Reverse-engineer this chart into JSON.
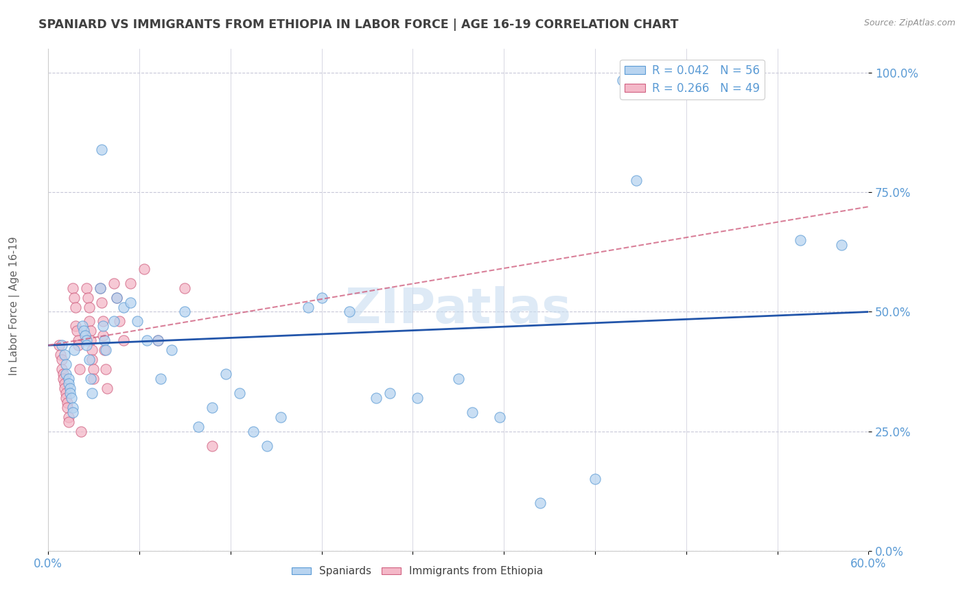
{
  "title": "SPANIARD VS IMMIGRANTS FROM ETHIOPIA IN LABOR FORCE | AGE 16-19 CORRELATION CHART",
  "source": "Source: ZipAtlas.com",
  "ylabel": "In Labor Force | Age 16-19",
  "xlim": [
    0.0,
    0.6
  ],
  "ylim": [
    0.0,
    1.05
  ],
  "yticks": [
    0.0,
    0.25,
    0.5,
    0.75,
    1.0
  ],
  "ytick_labels": [
    "0.0%",
    "25.0%",
    "50.0%",
    "75.0%",
    "100.0%"
  ],
  "blue_color": "#b8d4f0",
  "blue_edge": "#5b9bd5",
  "pink_color": "#f4b8c8",
  "pink_edge": "#d06080",
  "line_blue_color": "#2255aa",
  "line_pink_color": "#d06080",
  "axis_label_color": "#5b9bd5",
  "title_color": "#404040",
  "grid_color": "#c8c8d8",
  "watermark_color": "#c8ddf0",
  "blue_scatter": [
    [
      0.01,
      0.43
    ],
    [
      0.012,
      0.41
    ],
    [
      0.013,
      0.39
    ],
    [
      0.013,
      0.37
    ],
    [
      0.015,
      0.36
    ],
    [
      0.015,
      0.35
    ],
    [
      0.016,
      0.34
    ],
    [
      0.016,
      0.33
    ],
    [
      0.017,
      0.32
    ],
    [
      0.018,
      0.3
    ],
    [
      0.018,
      0.29
    ],
    [
      0.019,
      0.42
    ],
    [
      0.025,
      0.47
    ],
    [
      0.026,
      0.46
    ],
    [
      0.027,
      0.45
    ],
    [
      0.028,
      0.44
    ],
    [
      0.028,
      0.43
    ],
    [
      0.03,
      0.4
    ],
    [
      0.031,
      0.36
    ],
    [
      0.032,
      0.33
    ],
    [
      0.038,
      0.55
    ],
    [
      0.039,
      0.84
    ],
    [
      0.04,
      0.47
    ],
    [
      0.041,
      0.44
    ],
    [
      0.042,
      0.42
    ],
    [
      0.048,
      0.48
    ],
    [
      0.05,
      0.53
    ],
    [
      0.055,
      0.51
    ],
    [
      0.06,
      0.52
    ],
    [
      0.065,
      0.48
    ],
    [
      0.072,
      0.44
    ],
    [
      0.08,
      0.44
    ],
    [
      0.082,
      0.36
    ],
    [
      0.09,
      0.42
    ],
    [
      0.1,
      0.5
    ],
    [
      0.11,
      0.26
    ],
    [
      0.12,
      0.3
    ],
    [
      0.13,
      0.37
    ],
    [
      0.14,
      0.33
    ],
    [
      0.15,
      0.25
    ],
    [
      0.16,
      0.22
    ],
    [
      0.17,
      0.28
    ],
    [
      0.19,
      0.51
    ],
    [
      0.2,
      0.53
    ],
    [
      0.22,
      0.5
    ],
    [
      0.24,
      0.32
    ],
    [
      0.25,
      0.33
    ],
    [
      0.27,
      0.32
    ],
    [
      0.3,
      0.36
    ],
    [
      0.31,
      0.29
    ],
    [
      0.33,
      0.28
    ],
    [
      0.36,
      0.1
    ],
    [
      0.4,
      0.15
    ],
    [
      0.42,
      0.985
    ],
    [
      0.43,
      0.775
    ],
    [
      0.55,
      0.65
    ],
    [
      0.58,
      0.64
    ]
  ],
  "pink_scatter": [
    [
      0.008,
      0.43
    ],
    [
      0.009,
      0.41
    ],
    [
      0.01,
      0.4
    ],
    [
      0.01,
      0.38
    ],
    [
      0.011,
      0.37
    ],
    [
      0.011,
      0.36
    ],
    [
      0.012,
      0.35
    ],
    [
      0.012,
      0.34
    ],
    [
      0.013,
      0.33
    ],
    [
      0.013,
      0.32
    ],
    [
      0.014,
      0.31
    ],
    [
      0.014,
      0.3
    ],
    [
      0.015,
      0.28
    ],
    [
      0.015,
      0.27
    ],
    [
      0.018,
      0.55
    ],
    [
      0.019,
      0.53
    ],
    [
      0.02,
      0.51
    ],
    [
      0.02,
      0.47
    ],
    [
      0.021,
      0.46
    ],
    [
      0.022,
      0.44
    ],
    [
      0.022,
      0.43
    ],
    [
      0.023,
      0.38
    ],
    [
      0.024,
      0.25
    ],
    [
      0.028,
      0.55
    ],
    [
      0.029,
      0.53
    ],
    [
      0.03,
      0.51
    ],
    [
      0.03,
      0.48
    ],
    [
      0.031,
      0.46
    ],
    [
      0.031,
      0.44
    ],
    [
      0.032,
      0.42
    ],
    [
      0.032,
      0.4
    ],
    [
      0.033,
      0.38
    ],
    [
      0.033,
      0.36
    ],
    [
      0.038,
      0.55
    ],
    [
      0.039,
      0.52
    ],
    [
      0.04,
      0.48
    ],
    [
      0.04,
      0.45
    ],
    [
      0.041,
      0.42
    ],
    [
      0.042,
      0.38
    ],
    [
      0.043,
      0.34
    ],
    [
      0.048,
      0.56
    ],
    [
      0.05,
      0.53
    ],
    [
      0.052,
      0.48
    ],
    [
      0.055,
      0.44
    ],
    [
      0.06,
      0.56
    ],
    [
      0.07,
      0.59
    ],
    [
      0.08,
      0.44
    ],
    [
      0.1,
      0.55
    ],
    [
      0.12,
      0.22
    ]
  ],
  "blue_trendline_x": [
    0.0,
    0.6
  ],
  "blue_trendline_y": [
    0.43,
    0.5
  ],
  "pink_trendline_x": [
    0.0,
    0.6
  ],
  "pink_trendline_y": [
    0.43,
    0.72
  ]
}
